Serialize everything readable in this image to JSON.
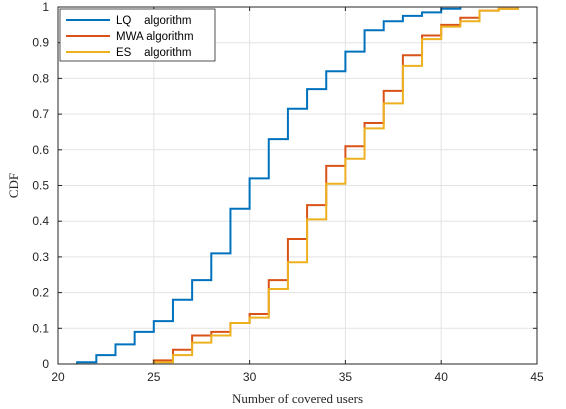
{
  "chart_data": {
    "type": "line",
    "step": true,
    "xlabel": "Number of covered users",
    "ylabel": "CDF",
    "xlim": [
      20,
      45
    ],
    "ylim": [
      0,
      1
    ],
    "xticks": [
      20,
      25,
      30,
      35,
      40,
      45
    ],
    "yticks": [
      0,
      0.1,
      0.2,
      0.3,
      0.4,
      0.5,
      0.6,
      0.7,
      0.8,
      0.9,
      1
    ],
    "grid": true,
    "legend_position": "top-left",
    "series": [
      {
        "name": "LQ    algorithm",
        "color": "#0072BD",
        "x": [
          21,
          22,
          23,
          24,
          25,
          26,
          27,
          28,
          29,
          30,
          31,
          32,
          33,
          34,
          35,
          36,
          37,
          38,
          39,
          40,
          41
        ],
        "y": [
          0.005,
          0.025,
          0.055,
          0.09,
          0.12,
          0.18,
          0.235,
          0.31,
          0.435,
          0.52,
          0.63,
          0.715,
          0.77,
          0.82,
          0.875,
          0.935,
          0.96,
          0.975,
          0.985,
          0.995,
          1.0
        ]
      },
      {
        "name": "MWA algorithm",
        "color": "#D95319",
        "x": [
          25,
          26,
          27,
          28,
          29,
          30,
          31,
          32,
          33,
          34,
          35,
          36,
          37,
          38,
          39,
          40,
          41,
          42,
          43,
          44
        ],
        "y": [
          0.01,
          0.04,
          0.08,
          0.09,
          0.115,
          0.14,
          0.235,
          0.35,
          0.445,
          0.555,
          0.61,
          0.675,
          0.765,
          0.865,
          0.92,
          0.95,
          0.97,
          0.99,
          0.995,
          1.0
        ]
      },
      {
        "name": "ES    algorithm",
        "color": "#EDB120",
        "x": [
          25,
          26,
          27,
          28,
          29,
          30,
          31,
          32,
          33,
          34,
          35,
          36,
          37,
          38,
          39,
          40,
          41,
          42,
          43,
          44
        ],
        "y": [
          0.005,
          0.025,
          0.06,
          0.08,
          0.115,
          0.13,
          0.21,
          0.285,
          0.405,
          0.505,
          0.575,
          0.66,
          0.73,
          0.835,
          0.91,
          0.945,
          0.96,
          0.99,
          0.995,
          1.0
        ]
      }
    ]
  }
}
